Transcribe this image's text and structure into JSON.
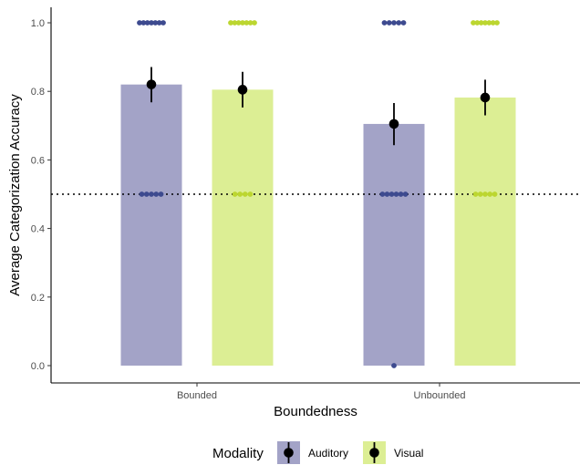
{
  "chart_data": {
    "type": "bar",
    "xlabel": "Boundedness",
    "ylabel": "Average Categorization Accuracy",
    "ylim": [
      0,
      1
    ],
    "yticks": [
      0.0,
      0.2,
      0.4,
      0.6,
      0.8,
      1.0
    ],
    "ytick_labels": [
      "0.0",
      "0.2",
      "0.4",
      "0.6",
      "0.8",
      "1.0"
    ],
    "categories": [
      "Bounded",
      "Unbounded"
    ],
    "reference_line": 0.5,
    "series": [
      {
        "name": "Auditory",
        "color": "#a3a3c7",
        "point_color": "#3d4a8f",
        "values": [
          0.82,
          0.705
        ],
        "error_low": [
          0.768,
          0.643
        ],
        "error_high": [
          0.871,
          0.766
        ],
        "individual_points": [
          [
            1.0,
            1.0,
            1.0,
            1.0,
            1.0,
            1.0,
            1.0,
            0.5,
            0.5,
            0.5,
            0.5,
            0.5
          ],
          [
            1.0,
            1.0,
            1.0,
            1.0,
            1.0,
            0.5,
            0.5,
            0.5,
            0.5,
            0.5,
            0.5,
            0.0
          ]
        ]
      },
      {
        "name": "Visual",
        "color": "#dcee94",
        "point_color": "#bcd630",
        "values": [
          0.805,
          0.782
        ],
        "error_low": [
          0.753,
          0.73
        ],
        "error_high": [
          0.857,
          0.834
        ],
        "individual_points": [
          [
            1.0,
            1.0,
            1.0,
            1.0,
            1.0,
            1.0,
            1.0,
            0.5,
            0.5,
            0.5,
            0.5
          ],
          [
            1.0,
            1.0,
            1.0,
            1.0,
            1.0,
            1.0,
            1.0,
            0.5,
            0.5,
            0.5,
            0.5,
            0.5
          ]
        ]
      }
    ],
    "legend": {
      "title": "Modality",
      "position": "bottom",
      "items": [
        "Auditory",
        "Visual"
      ]
    },
    "grid": false
  }
}
